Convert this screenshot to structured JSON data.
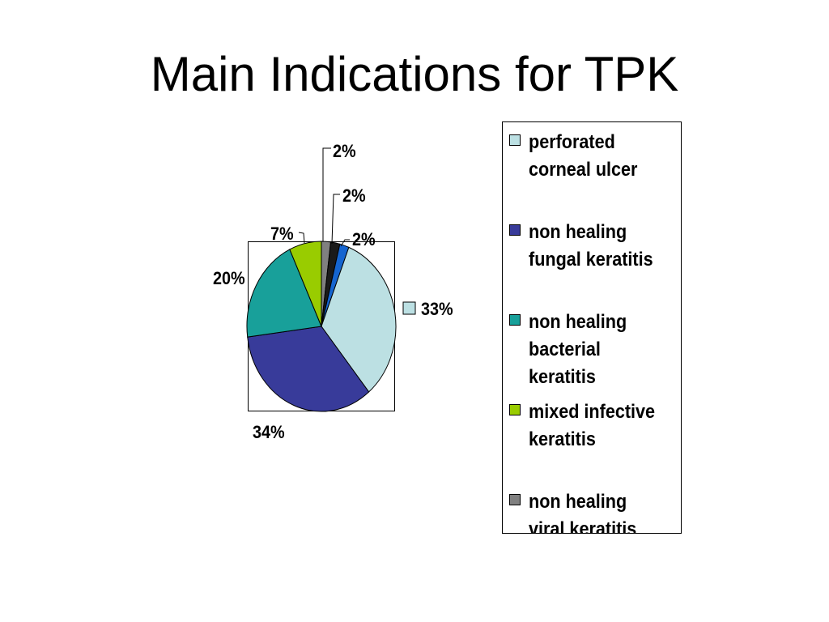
{
  "title": "Main Indications for TPK",
  "chart_data": {
    "type": "pie",
    "title": "",
    "slices": [
      {
        "name": "perforated corneal ulcer",
        "value": 33,
        "label": "33%",
        "color": "#bce0e3"
      },
      {
        "name": "non healing fungal keratitis",
        "value": 34,
        "label": "34%",
        "color": "#383b9a"
      },
      {
        "name": "non healing bacterial keratitis",
        "value": 20,
        "label": "20%",
        "color": "#18a09a"
      },
      {
        "name": "mixed infective keratitis",
        "value": 7,
        "label": "7%",
        "color": "#99cc00"
      },
      {
        "name": "non healing viral keratitis",
        "value": 2,
        "label": "2%",
        "color": "#808080"
      },
      {
        "name": "",
        "value": 2,
        "label": "2%",
        "color": "#1a1a1a"
      },
      {
        "name": "",
        "value": 2,
        "label": "2%",
        "color": "#1565d0"
      }
    ],
    "legend": {
      "position": "right",
      "entries": [
        {
          "text": "perforated\ncorneal ulcer",
          "color": "#bce0e3"
        },
        {
          "text": "non healing\nfungal keratitis",
          "color": "#383b9a"
        },
        {
          "text": "non healing\nbacterial\nkeratitis",
          "color": "#18a09a"
        },
        {
          "text": "mixed infective\nkeratitis",
          "color": "#99cc00"
        },
        {
          "text": "non healing\nviral keratitis",
          "color": "#808080"
        }
      ]
    }
  }
}
